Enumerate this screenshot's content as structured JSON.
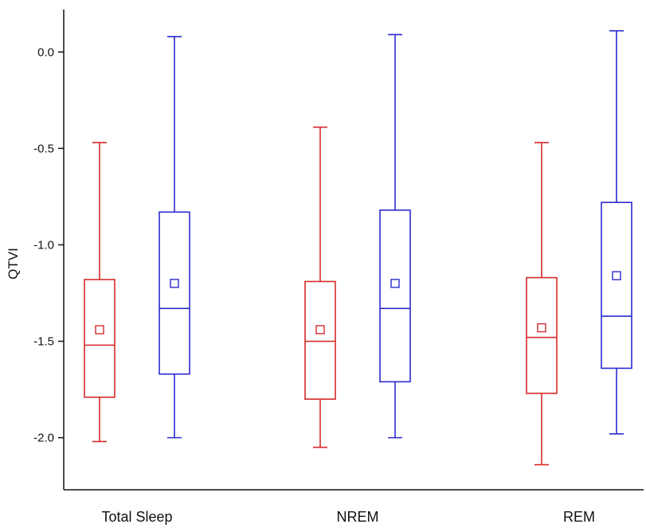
{
  "chart_data": {
    "type": "box",
    "ylabel": "QTVI",
    "xlabel": "",
    "ylim": [
      -2.27,
      0.22
    ],
    "yticks": [
      0.0,
      -0.5,
      -1.0,
      -1.5,
      -2.0
    ],
    "ytick_labels": [
      "0.0",
      "-0.5",
      "-1.0",
      "-1.5",
      "-2.0"
    ],
    "categories": [
      "Total Sleep",
      "NREM",
      "REM"
    ],
    "series": [
      {
        "color": "#d62a2a",
        "boxes": [
          {
            "whisker_low": -2.02,
            "q1": -1.79,
            "median": -1.52,
            "q3": -1.18,
            "whisker_high": -0.47,
            "mean": -1.44
          },
          {
            "whisker_low": -2.05,
            "q1": -1.8,
            "median": -1.5,
            "q3": -1.19,
            "whisker_high": -0.39,
            "mean": -1.44
          },
          {
            "whisker_low": -2.14,
            "q1": -1.77,
            "median": -1.48,
            "q3": -1.17,
            "whisker_high": -0.47,
            "mean": -1.43
          }
        ]
      },
      {
        "color": "#2b2bd0",
        "boxes": [
          {
            "whisker_low": -2.0,
            "q1": -1.67,
            "median": -1.33,
            "q3": -0.83,
            "whisker_high": 0.08,
            "mean": -1.2
          },
          {
            "whisker_low": -2.0,
            "q1": -1.71,
            "median": -1.33,
            "q3": -0.82,
            "whisker_high": 0.09,
            "mean": -1.2
          },
          {
            "whisker_low": -1.98,
            "q1": -1.64,
            "median": -1.37,
            "q3": -0.78,
            "whisker_high": 0.11,
            "mean": -1.16
          }
        ]
      }
    ]
  }
}
